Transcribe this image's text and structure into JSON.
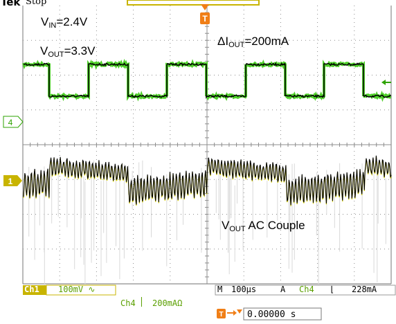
{
  "header": {
    "brand": "Tek",
    "state": "Stop"
  },
  "annotations": {
    "vin_main": "V",
    "vin_sub": "IN",
    "vin_value": "=2.4V",
    "vout_main": "V",
    "vout_sub": "OUT",
    "vout_value": "=3.3V",
    "dI_prefix": "ΔI",
    "dI_sub": "OUT",
    "dI_value": "=200mA",
    "vac_main": "V",
    "vac_sub": "OUT",
    "vac_value": " AC Couple"
  },
  "markers": {
    "ch4": "4",
    "ch1": "1",
    "trigger": "T"
  },
  "status": {
    "ch1_label": "Ch1",
    "ch1_scale": "100mV",
    "ch1_coupling_symbol": "∿",
    "timebase_mode": "M",
    "timebase": "100µs",
    "trigger_mode": "A",
    "trigger_source": "Ch4",
    "trigger_slope": "⌊",
    "trigger_level": "228mA",
    "ch4_label": "Ch4",
    "ch4_scale": "200mA",
    "ch4_unit_symbol": "Ω",
    "trigger_position": "0.00000 s"
  },
  "colors": {
    "graticule": "#8c8c8c",
    "ch1_marker": "#c8b400",
    "ch4_marker": "#2ea300",
    "trigger_marker": "#f07e16",
    "trace": "#000000",
    "trace_glow_green": "#4fcf2a",
    "trace_glow_yellow": "#d9d200",
    "status_green": "#5a9f00"
  }
}
